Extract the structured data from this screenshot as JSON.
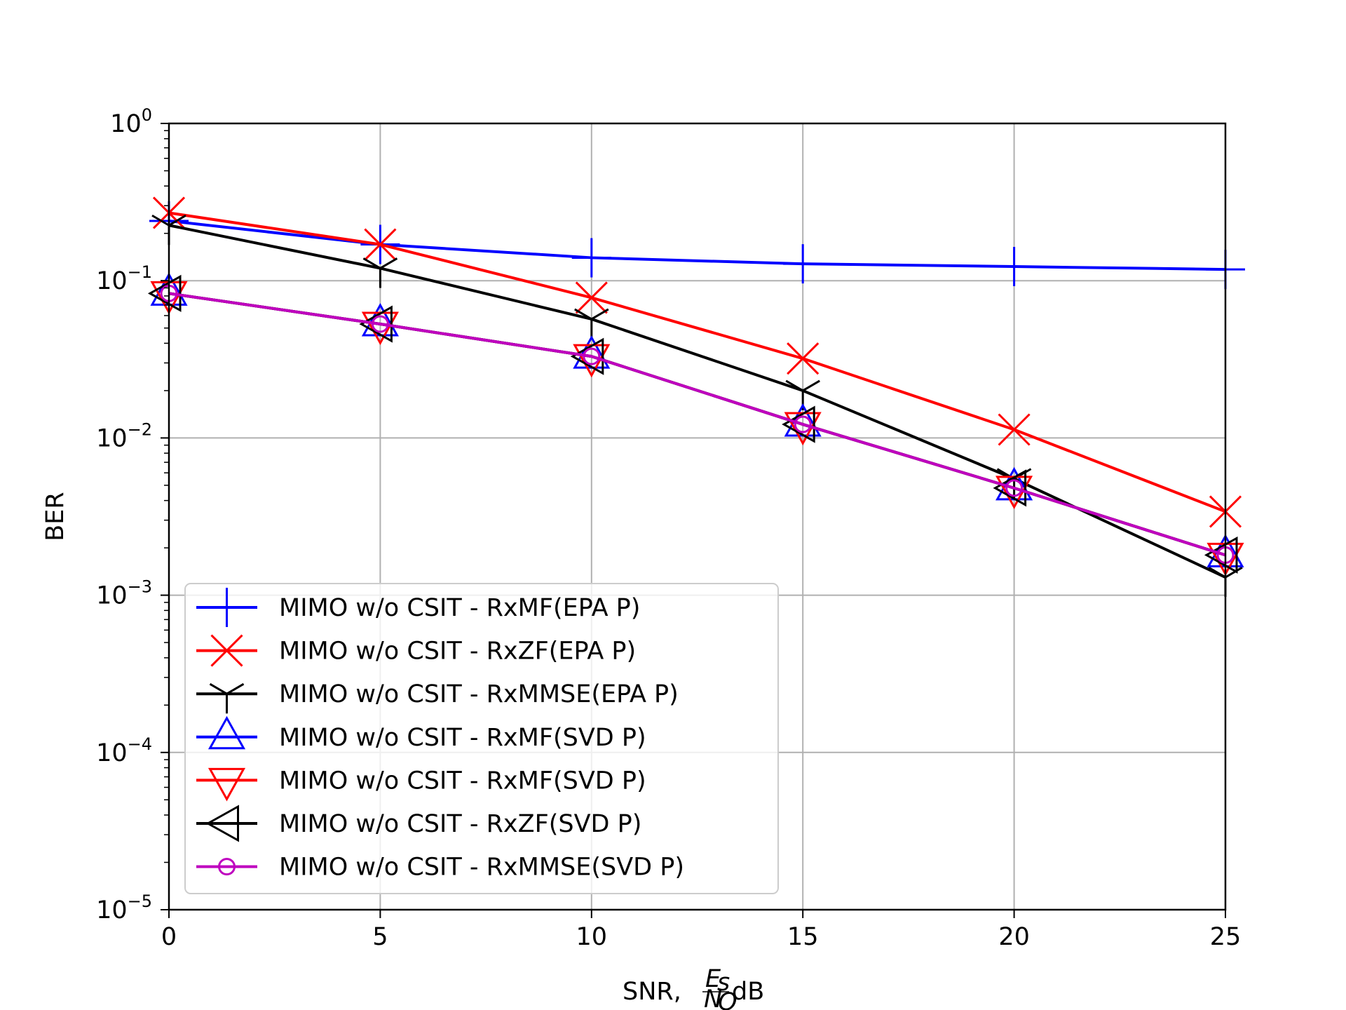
{
  "chart_data": {
    "type": "line",
    "xlabel": {
      "prefix": "SNR, ",
      "frac_num": "E",
      "frac_num_sub": "s",
      "frac_den": "N",
      "frac_den_sub": "O",
      "suffix": "dB"
    },
    "ylabel": "BER",
    "x": [
      0,
      5,
      10,
      15,
      20,
      25
    ],
    "xlim": [
      0,
      25
    ],
    "ylim": [
      1e-05,
      1
    ],
    "yscale": "log",
    "xticks": [
      "0",
      "5",
      "10",
      "15",
      "20",
      "25"
    ],
    "yticks": [
      {
        "base": "10",
        "exp": "0"
      },
      {
        "base": "10",
        "exp": "−1"
      },
      {
        "base": "10",
        "exp": "−2"
      },
      {
        "base": "10",
        "exp": "−3"
      },
      {
        "base": "10",
        "exp": "−4"
      },
      {
        "base": "10",
        "exp": "−5"
      }
    ],
    "grid": true,
    "legend_position": "lower-left",
    "series": [
      {
        "name": "MIMO w/o CSIT - RxMF(EPA P)",
        "color": "#0000ff",
        "marker": "plus",
        "values": [
          0.24,
          0.17,
          0.14,
          0.128,
          0.123,
          0.118
        ]
      },
      {
        "name": "MIMO w/o CSIT - RxZF(EPA P)",
        "color": "#ff0000",
        "marker": "x",
        "values": [
          0.27,
          0.17,
          0.078,
          0.032,
          0.0113,
          0.0034
        ]
      },
      {
        "name": "MIMO w/o CSIT - RxMMSE(EPA P)",
        "color": "#000000",
        "marker": "tri_up",
        "values": [
          0.225,
          0.12,
          0.057,
          0.02,
          0.0055,
          0.0013
        ]
      },
      {
        "name": "MIMO w/o CSIT - RxMF(SVD P)",
        "color": "#0000ff",
        "marker": "triangle_up",
        "values": [
          0.083,
          0.053,
          0.033,
          0.0122,
          0.0048,
          0.0018
        ]
      },
      {
        "name": "MIMO w/o CSIT - RxMF(SVD P)",
        "color": "#ff0000",
        "marker": "triangle_down",
        "values": [
          0.083,
          0.053,
          0.033,
          0.0122,
          0.0048,
          0.0018
        ]
      },
      {
        "name": "MIMO w/o CSIT - RxZF(SVD P)",
        "color": "#000000",
        "marker": "triangle_left",
        "values": [
          0.083,
          0.053,
          0.033,
          0.0122,
          0.0048,
          0.0018
        ]
      },
      {
        "name": "MIMO w/o CSIT - RxMMSE(SVD P)",
        "color": "#bf00bf",
        "marker": "circle",
        "values": [
          0.083,
          0.053,
          0.033,
          0.0122,
          0.0048,
          0.0018
        ]
      }
    ]
  }
}
